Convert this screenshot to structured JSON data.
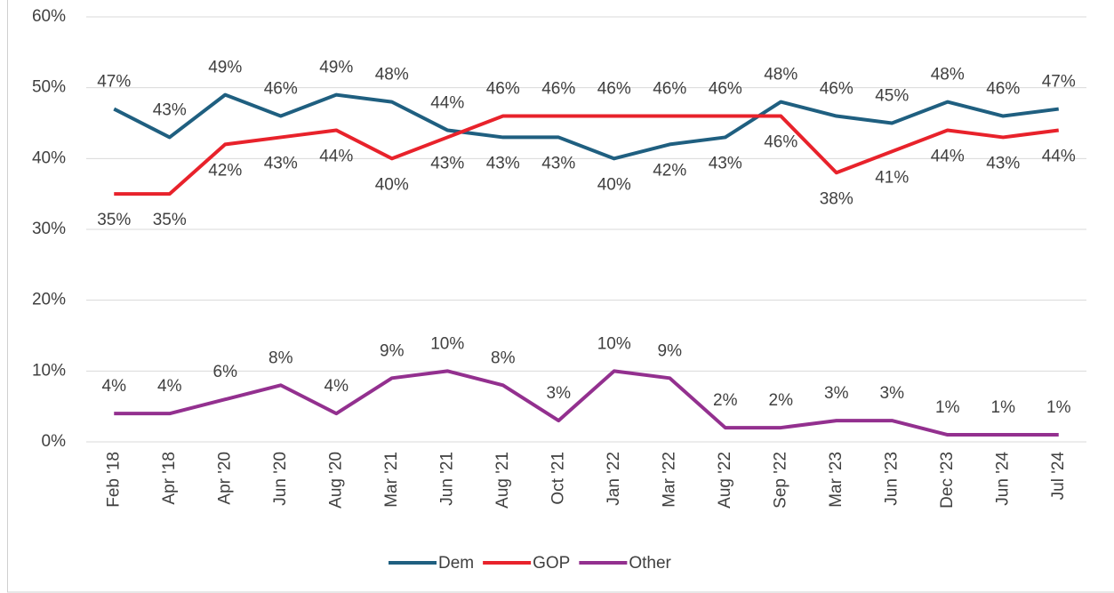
{
  "chart_data": {
    "type": "line",
    "categories": [
      "Feb '18",
      "Apr '18",
      "Apr '20",
      "Jun '20",
      "Aug '20",
      "Mar '21",
      "Jun '21",
      "Aug '21",
      "Oct '21",
      "Jan '22",
      "Mar '22",
      "Aug '22",
      "Sep '22",
      "Mar '23",
      "Jun '23",
      "Dec '23",
      "Jun '24",
      "Jul '24"
    ],
    "series": [
      {
        "name": "Dem",
        "color": "#1f5f80",
        "values": [
          47,
          43,
          49,
          46,
          49,
          48,
          44,
          43,
          43,
          40,
          42,
          43,
          48,
          46,
          45,
          48,
          46,
          47
        ],
        "value_labels": [
          "47%",
          "43%",
          "49%",
          "46%",
          "49%",
          "48%",
          "44%",
          "43%",
          "43%",
          "40%",
          "42%",
          "43%",
          "48%",
          "46%",
          "45%",
          "48%",
          "46%",
          "47%"
        ]
      },
      {
        "name": "GOP",
        "color": "#e8222b",
        "values": [
          35,
          35,
          42,
          43,
          44,
          40,
          43,
          46,
          46,
          46,
          46,
          46,
          46,
          38,
          41,
          44,
          43,
          44
        ],
        "value_labels": [
          "35%",
          "35%",
          "42%",
          "43%",
          "44%",
          "40%",
          "43%",
          "46%",
          "46%",
          "46%",
          "46%",
          "46%",
          "46%",
          "38%",
          "41%",
          "44%",
          "43%",
          "44%"
        ]
      },
      {
        "name": "Other",
        "color": "#93308f",
        "values": [
          4,
          4,
          6,
          8,
          4,
          9,
          10,
          8,
          3,
          10,
          9,
          2,
          2,
          3,
          3,
          1,
          1,
          1
        ],
        "value_labels": [
          "4%",
          "4%",
          "6%",
          "8%",
          "4%",
          "9%",
          "10%",
          "8%",
          "3%",
          "10%",
          "9%",
          "2%",
          "2%",
          "3%",
          "3%",
          "1%",
          "1%",
          "1%"
        ]
      }
    ],
    "ylim": [
      0,
      60
    ],
    "yticks": [
      {
        "value": 0,
        "label": "0%"
      },
      {
        "value": 10,
        "label": "10%"
      },
      {
        "value": 20,
        "label": "20%"
      },
      {
        "value": 30,
        "label": "30%"
      },
      {
        "value": 40,
        "label": "40%"
      },
      {
        "value": 50,
        "label": "50%"
      },
      {
        "value": 60,
        "label": "60%"
      }
    ],
    "grid": true,
    "legend": "bottom"
  }
}
